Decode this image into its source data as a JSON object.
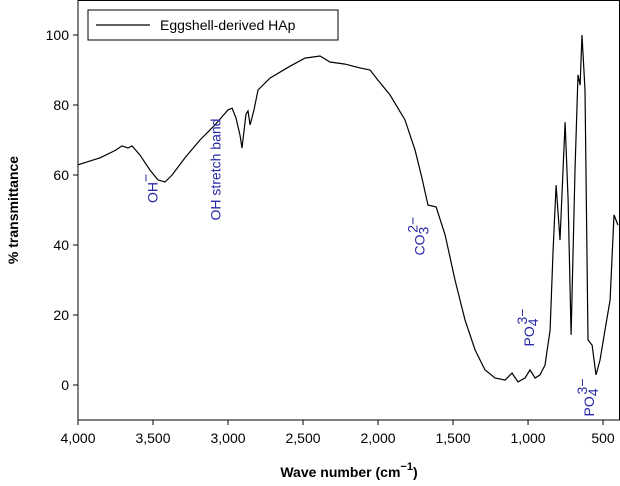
{
  "chart_data": {
    "type": "line",
    "xlabel": {
      "text": "Wave number (cm",
      "sup": "−1",
      "tail": ")"
    },
    "ylabel": "% transmittance",
    "xlim": [
      4000,
      387
    ],
    "ylim": [
      -10,
      110
    ],
    "xticks": [
      {
        "value": 4000,
        "label": "4,000"
      },
      {
        "value": 3500,
        "label": "3,500"
      },
      {
        "value": 3000,
        "label": "3,000"
      },
      {
        "value": 2500,
        "label": "2,500"
      },
      {
        "value": 2000,
        "label": "2,000"
      },
      {
        "value": 1500,
        "label": "1,500"
      },
      {
        "value": 1000,
        "label": "1,000"
      },
      500
    ],
    "yticks": [
      0,
      20,
      40,
      60,
      80,
      100
    ],
    "legend_position": "upper left",
    "series": [
      {
        "name": "Eggshell-derived HAp",
        "color": "#000000",
        "x": [
          4000,
          3853,
          3753,
          3707,
          3667,
          3640,
          3587,
          3520,
          3467,
          3420,
          3373,
          3287,
          3187,
          3087,
          3000,
          2973,
          2947,
          2920,
          2907,
          2880,
          2867,
          2853,
          2827,
          2800,
          2720,
          2587,
          2487,
          2387,
          2320,
          2220,
          2120,
          2053,
          2000,
          1920,
          1820,
          1753,
          1707,
          1667,
          1613,
          1553,
          1487,
          1420,
          1353,
          1287,
          1220,
          1153,
          1107,
          1067,
          1020,
          987,
          953,
          920,
          887,
          853,
          833,
          813,
          787,
          753,
          733,
          713,
          687,
          667,
          653,
          640,
          620,
          600,
          573,
          547,
          520,
          487,
          453,
          427,
          400
        ],
        "values": [
          62.9,
          64.9,
          67,
          68.3,
          67.7,
          68.3,
          65.7,
          61.4,
          58.6,
          58,
          60,
          64.9,
          70,
          74.3,
          78.6,
          79.1,
          76.3,
          71.4,
          67.7,
          77.4,
          78.3,
          74.3,
          78.6,
          84.3,
          87.7,
          91.1,
          93.4,
          94,
          92.3,
          91.7,
          90.6,
          90,
          87.1,
          82.9,
          75.7,
          67.1,
          59.1,
          51.4,
          50.9,
          42.9,
          30,
          18.6,
          10,
          4.3,
          2,
          1.4,
          3.4,
          0.9,
          2,
          4.3,
          2,
          2.9,
          5.7,
          15.7,
          38.6,
          57.1,
          41.4,
          75.1,
          52.9,
          14.3,
          61.4,
          88.6,
          85.7,
          100,
          84.3,
          12.9,
          11.4,
          2.9,
          7.1,
          15.7,
          24.3,
          48.6,
          45.7
        ]
      }
    ],
    "annotations": [
      {
        "text": "OH",
        "sup": "−",
        "x": 3470,
        "y": 52
      },
      {
        "text": "OH stretch band",
        "x": 3050,
        "y": 47
      },
      {
        "text": "CO",
        "sub": "3",
        "sup": "2−",
        "x": 1690,
        "y": 37
      },
      {
        "text": "PO",
        "sub": "4",
        "sup": "3−",
        "x": 960,
        "y": 11
      },
      {
        "text": "PO",
        "sub": "4",
        "sup": "3−",
        "x": 560,
        "y": -9
      }
    ]
  }
}
